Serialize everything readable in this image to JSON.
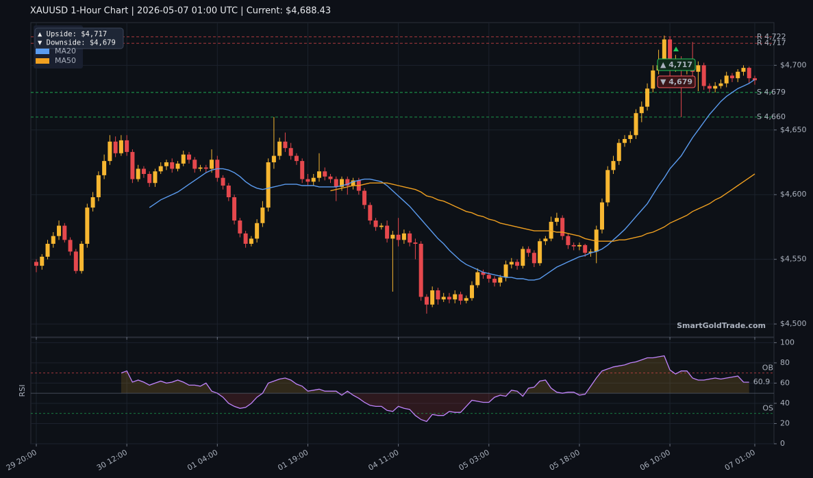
{
  "chart_data": [
    {
      "type": "candlestick",
      "title": "XAUUSD  1-Hour Chart  |  2026-05-07 01:00 UTC  |  Current: $4,688.43",
      "categories": [
        "29 20:00",
        null,
        null,
        null,
        null,
        null,
        null,
        null,
        null,
        null,
        null,
        null,
        null,
        null,
        null,
        null,
        "30 12:00",
        null,
        null,
        null,
        null,
        null,
        null,
        null,
        null,
        null,
        null,
        null,
        null,
        null,
        null,
        null,
        "01 04:00",
        null,
        null,
        null,
        null,
        null,
        null,
        null,
        null,
        null,
        null,
        null,
        null,
        null,
        null,
        null,
        "01 19:00",
        null,
        null,
        null,
        null,
        null,
        null,
        null,
        null,
        null,
        null,
        null,
        null,
        null,
        null,
        null,
        "04 11:00",
        null,
        null,
        null,
        null,
        null,
        null,
        null,
        null,
        null,
        null,
        null,
        null,
        null,
        null,
        null,
        "05 03:00",
        null,
        null,
        null,
        null,
        null,
        null,
        null,
        null,
        null,
        null,
        null,
        null,
        null,
        null,
        null,
        "05 18:00",
        null,
        null,
        null,
        null,
        null,
        null,
        null,
        null,
        null,
        null,
        null,
        null,
        null,
        null,
        null,
        "06 10:00",
        null,
        null,
        null,
        null,
        null,
        null,
        null,
        null,
        null,
        null,
        null,
        null,
        null,
        null,
        "07 01:00"
      ],
      "open": [
        4548,
        4545,
        4552,
        4562,
        4568,
        4576,
        4565,
        4556,
        4541,
        4562,
        4590,
        4598,
        4615,
        4626,
        4641,
        4632,
        4642,
        4633,
        4612,
        4620,
        4616,
        4609,
        4618,
        4622,
        4625,
        4620,
        4624,
        4631,
        4627,
        4620,
        4621,
        4620,
        4627,
        4613,
        4607,
        4598,
        4580,
        4570,
        4562,
        4566,
        4578,
        4590,
        4625,
        4630,
        4641,
        4636,
        4630,
        4626,
        4612,
        4610,
        4613,
        4618,
        4614,
        4612,
        4606,
        4612,
        4607,
        4611,
        4603,
        4592,
        4580,
        4575,
        4576,
        4566,
        4569,
        4565,
        4570,
        4563,
        4562,
        4521,
        4515,
        4526,
        4519,
        4521,
        4519,
        4523,
        4518,
        4520,
        4530,
        4540,
        4538,
        4535,
        4532,
        4536,
        4546,
        4548,
        4545,
        4558,
        4555,
        4547,
        4564,
        4566,
        4579,
        4582,
        4568,
        4561,
        4560,
        4561,
        4555,
        4556,
        4573,
        4594,
        4619,
        4626,
        4640,
        4643,
        4646,
        4663,
        4668,
        4682,
        4696,
        4700,
        4720,
        4698,
        4704,
        4696,
        4702,
        4695,
        4700,
        4684,
        4682,
        4684,
        4686,
        4692,
        4690,
        4695,
        4698,
        4690
      ],
      "high": [
        4550,
        4554,
        4565,
        4571,
        4580,
        4578,
        4567,
        4558,
        4564,
        4593,
        4602,
        4618,
        4631,
        4646,
        4645,
        4646,
        4646,
        4635,
        4623,
        4622,
        4618,
        4620,
        4625,
        4627,
        4628,
        4626,
        4634,
        4633,
        4629,
        4623,
        4623,
        4635,
        4630,
        4615,
        4609,
        4600,
        4582,
        4572,
        4568,
        4581,
        4595,
        4628,
        4660,
        4644,
        4648,
        4640,
        4632,
        4628,
        4616,
        4616,
        4632,
        4621,
        4616,
        4614,
        4614,
        4614,
        4613,
        4613,
        4605,
        4594,
        4582,
        4578,
        4580,
        4572,
        4582,
        4573,
        4572,
        4566,
        4564,
        4523,
        4529,
        4528,
        4524,
        4524,
        4526,
        4525,
        4522,
        4533,
        4543,
        4542,
        4540,
        4537,
        4538,
        4549,
        4551,
        4550,
        4560,
        4560,
        4557,
        4566,
        4568,
        4583,
        4586,
        4584,
        4570,
        4563,
        4563,
        4562,
        4558,
        4576,
        4597,
        4622,
        4630,
        4643,
        4646,
        4649,
        4666,
        4672,
        4686,
        4700,
        4712,
        4723,
        4722,
        4708,
        4707,
        4705,
        4718,
        4703,
        4702,
        4686,
        4687,
        4689,
        4695,
        4694,
        4697,
        4700,
        4699,
        4692
      ],
      "low": [
        4540,
        4542,
        4550,
        4559,
        4565,
        4563,
        4553,
        4539,
        4539,
        4559,
        4587,
        4595,
        4612,
        4623,
        4629,
        4630,
        4630,
        4609,
        4610,
        4613,
        4606,
        4606,
        4616,
        4619,
        4617,
        4618,
        4622,
        4624,
        4617,
        4618,
        4617,
        4617,
        4610,
        4604,
        4595,
        4577,
        4567,
        4559,
        4560,
        4563,
        4575,
        4587,
        4620,
        4627,
        4633,
        4627,
        4623,
        4609,
        4607,
        4607,
        4610,
        4611,
        4609,
        4595,
        4603,
        4600,
        4604,
        4600,
        4589,
        4577,
        4572,
        4573,
        4563,
        4525,
        4560,
        4562,
        4560,
        4550,
        4518,
        4508,
        4513,
        4515,
        4517,
        4516,
        4516,
        4515,
        4516,
        4518,
        4528,
        4535,
        4532,
        4529,
        4529,
        4533,
        4543,
        4542,
        4543,
        4552,
        4544,
        4545,
        4561,
        4564,
        4576,
        4565,
        4558,
        4557,
        4557,
        4552,
        4552,
        4547,
        4570,
        4591,
        4616,
        4623,
        4637,
        4640,
        4643,
        4656,
        4665,
        4679,
        4693,
        4697,
        4685,
        4695,
        4660,
        4693,
        4690,
        4680,
        4681,
        4679,
        4679,
        4682,
        4683,
        4687,
        4687,
        4692,
        4686,
        4685
      ],
      "close": [
        4545,
        4552,
        4562,
        4568,
        4576,
        4565,
        4556,
        4541,
        4562,
        4590,
        4598,
        4615,
        4626,
        4641,
        4632,
        4642,
        4633,
        4612,
        4620,
        4616,
        4609,
        4618,
        4622,
        4625,
        4620,
        4624,
        4631,
        4627,
        4620,
        4621,
        4620,
        4627,
        4613,
        4607,
        4598,
        4580,
        4570,
        4562,
        4566,
        4578,
        4590,
        4625,
        4630,
        4641,
        4636,
        4630,
        4626,
        4612,
        4610,
        4613,
        4618,
        4614,
        4612,
        4606,
        4612,
        4607,
        4611,
        4603,
        4592,
        4580,
        4575,
        4576,
        4566,
        4569,
        4565,
        4570,
        4563,
        4562,
        4521,
        4515,
        4526,
        4519,
        4521,
        4519,
        4523,
        4518,
        4520,
        4530,
        4540,
        4538,
        4535,
        4532,
        4536,
        4546,
        4548,
        4545,
        4558,
        4555,
        4547,
        4564,
        4566,
        4579,
        4582,
        4568,
        4561,
        4560,
        4561,
        4555,
        4556,
        4573,
        4594,
        4619,
        4626,
        4640,
        4643,
        4646,
        4663,
        4668,
        4682,
        4696,
        4700,
        4720,
        4698,
        4704,
        4696,
        4702,
        4695,
        4700,
        4684,
        4682,
        4684,
        4686,
        4692,
        4690,
        4695,
        4698,
        4690,
        4688.43
      ],
      "up_color": "#f7b731",
      "down_color": "#e5484d",
      "series": [
        {
          "name": "MA20",
          "color": "#5b9cf0",
          "values": [
            null,
            null,
            null,
            null,
            null,
            null,
            null,
            null,
            null,
            null,
            null,
            null,
            null,
            null,
            null,
            null,
            null,
            null,
            null,
            null,
            4590,
            4593,
            4596,
            4598,
            4600,
            4602,
            4605,
            4608,
            4611,
            4614,
            4617,
            4619,
            4620,
            4620,
            4619,
            4617,
            4614,
            4610,
            4607,
            4605,
            4604,
            4605,
            4606,
            4607,
            4608,
            4608,
            4608,
            4607,
            4607,
            4607,
            4606,
            4606,
            4606,
            4606,
            4607,
            4608,
            4610,
            4611,
            4612,
            4612,
            4611,
            4610,
            4607,
            4603,
            4599,
            4595,
            4591,
            4586,
            4581,
            4576,
            4571,
            4566,
            4562,
            4557,
            4553,
            4549,
            4546,
            4544,
            4542,
            4540,
            4539,
            4538,
            4537,
            4536,
            4536,
            4535,
            4535,
            4534,
            4534,
            4535,
            4538,
            4541,
            4544,
            4546,
            4548,
            4550,
            4552,
            4553,
            4555,
            4556,
            4558,
            4561,
            4565,
            4569,
            4573,
            4578,
            4583,
            4588,
            4593,
            4600,
            4607,
            4613,
            4620,
            4625,
            4630,
            4637,
            4644,
            4650,
            4656,
            4662,
            4667,
            4672,
            4676,
            4679,
            4682,
            4684,
            4686,
            4689
          ]
        },
        {
          "name": "MA50",
          "color": "#f0a020",
          "values": [
            null,
            null,
            null,
            null,
            null,
            null,
            null,
            null,
            null,
            null,
            null,
            null,
            null,
            null,
            null,
            null,
            null,
            null,
            null,
            null,
            null,
            null,
            null,
            null,
            null,
            null,
            null,
            null,
            null,
            null,
            null,
            null,
            null,
            null,
            null,
            null,
            null,
            null,
            null,
            null,
            null,
            null,
            null,
            null,
            null,
            null,
            null,
            null,
            null,
            null,
            null,
            null,
            4603,
            4604,
            4605,
            4606,
            4607,
            4607,
            4608,
            4609,
            4609,
            4609,
            4609,
            4608,
            4607,
            4606,
            4605,
            4604,
            4602,
            4599,
            4598,
            4596,
            4595,
            4593,
            4591,
            4589,
            4587,
            4586,
            4584,
            4583,
            4581,
            4580,
            4578,
            4577,
            4576,
            4575,
            4574,
            4573,
            4572,
            4572,
            4572,
            4572,
            4571,
            4571,
            4570,
            4569,
            4568,
            4566,
            4565,
            4564,
            4564,
            4564,
            4564,
            4565,
            4565,
            4566,
            4567,
            4568,
            4570,
            4571,
            4573,
            4575,
            4578,
            4580,
            4582,
            4584,
            4587,
            4589,
            4591,
            4593,
            4596,
            4598,
            4601,
            4604,
            4607,
            4610,
            4613,
            4616
          ]
        }
      ],
      "ylim": [
        4490,
        4733
      ],
      "yticks": [
        {
          "value": 4500,
          "label": "$4,500"
        },
        {
          "value": 4550,
          "label": "$4,550"
        },
        {
          "value": 4600,
          "label": "$4,600"
        },
        {
          "value": 4650,
          "label": "$4,650"
        },
        {
          "value": 4700,
          "label": "$4,700"
        }
      ],
      "grid": true,
      "levels": [
        {
          "value": 4722,
          "label": "R 4,722",
          "color": "#e5484d"
        },
        {
          "value": 4717,
          "label": "R 4,717",
          "color": "#e5484d"
        },
        {
          "value": 4679,
          "label": "S 4,679",
          "color": "#22c55e"
        },
        {
          "value": 4660,
          "label": "S 4,660",
          "color": "#22c55e"
        }
      ],
      "badges": [
        {
          "value": 4717,
          "label": "▲ 4,717",
          "color": "#22c55e",
          "fill": "#0f2a1a"
        },
        {
          "value": 4679,
          "label": "▼ 4,679",
          "color": "#ff5a5f",
          "fill": "#3a1518"
        }
      ],
      "info_box": [
        {
          "value": 4717,
          "label": "▲ Upside:   $4,717"
        },
        {
          "value": 4679,
          "label": "▼ Downside: $4,679"
        }
      ],
      "watermark": "SmartGoldTrade.com",
      "legend": "upper left"
    },
    {
      "type": "line",
      "ylabel": "RSI",
      "color": "#c084fc",
      "values": [
        null,
        null,
        null,
        null,
        null,
        null,
        null,
        null,
        null,
        null,
        null,
        null,
        null,
        null,
        null,
        70,
        72,
        61,
        63,
        61,
        58,
        60,
        62,
        60,
        61,
        63,
        61,
        58,
        58,
        57,
        60,
        52,
        50,
        46,
        40,
        37,
        35,
        36,
        40,
        46,
        50,
        60,
        62,
        64,
        65,
        63,
        59,
        57,
        52,
        53,
        54,
        52,
        52,
        52,
        48,
        52,
        48,
        45,
        41,
        38,
        37,
        37,
        33,
        32,
        37,
        35,
        34,
        28,
        24,
        22,
        29,
        28,
        28,
        32,
        31,
        31,
        37,
        43,
        42,
        41,
        41,
        46,
        48,
        47,
        53,
        52,
        47,
        55,
        56,
        62,
        63,
        55,
        51,
        50,
        51,
        51,
        48,
        49,
        57,
        65,
        72,
        74,
        76,
        77,
        78,
        80,
        81,
        83,
        85,
        85,
        86,
        87,
        73,
        69,
        72,
        72,
        65,
        63,
        63,
        64,
        65,
        64,
        65,
        66,
        67,
        61,
        60.9
      ],
      "ylim": [
        0,
        105
      ],
      "yticks": [
        0,
        20,
        40,
        60,
        80,
        100
      ],
      "grid": true,
      "midline": 50,
      "above_fill": "#f7b731",
      "below_fill": "#e5484d",
      "levels": [
        {
          "value": 70,
          "label": "OB",
          "color": "#e5484d"
        },
        {
          "value": 30,
          "label": "OS",
          "color": "#22c55e"
        }
      ]
    }
  ]
}
